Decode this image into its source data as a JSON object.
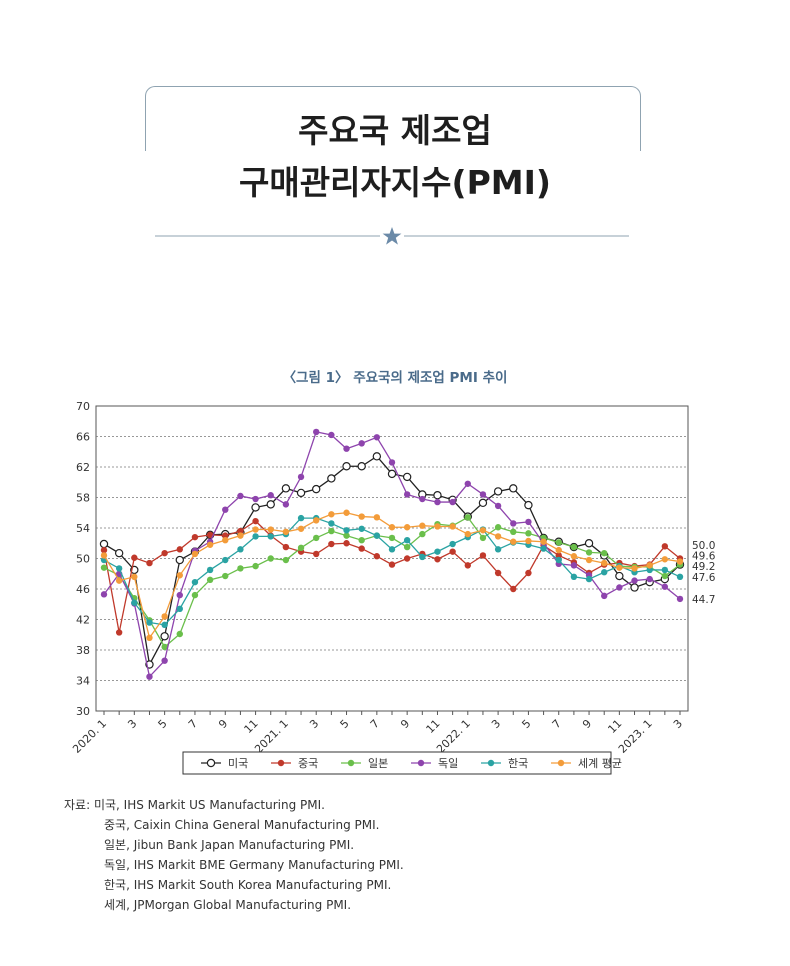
{
  "title": {
    "line1": "주요국 제조업",
    "line2": "구매관리자지수(PMI)"
  },
  "colors": {
    "title_box": "#8fa3b1",
    "rule": "#8fa3b1",
    "star": "#6b8aa8",
    "caption": "#4a6b8a"
  },
  "figure_caption": "〈그림 1〉 주요국의 제조업 PMI 추이",
  "chart_data": {
    "type": "line",
    "ylim": [
      30,
      70
    ],
    "yticks": [
      30,
      34,
      38,
      42,
      46,
      50,
      54,
      58,
      62,
      66,
      70
    ],
    "grid": true,
    "x": [
      "2020.1",
      "2020.2",
      "2020.3",
      "2020.4",
      "2020.5",
      "2020.6",
      "2020.7",
      "2020.8",
      "2020.9",
      "2020.10",
      "2020.11",
      "2020.12",
      "2021.1",
      "2021.2",
      "2021.3",
      "2021.4",
      "2021.5",
      "2021.6",
      "2021.7",
      "2021.8",
      "2021.9",
      "2021.10",
      "2021.11",
      "2021.12",
      "2022.1",
      "2022.2",
      "2022.3",
      "2022.4",
      "2022.5",
      "2022.6",
      "2022.7",
      "2022.8",
      "2022.9",
      "2022.10",
      "2022.11",
      "2022.12",
      "2023.1",
      "2023.2",
      "2023.3"
    ],
    "xtick_labels": [
      "2020. 1",
      "",
      "3",
      "",
      "5",
      "",
      "7",
      "",
      "9",
      "",
      "11",
      "",
      "2021. 1",
      "",
      "3",
      "",
      "5",
      "",
      "7",
      "",
      "9",
      "",
      "11",
      "",
      "2022. 1",
      "",
      "3",
      "",
      "5",
      "",
      "7",
      "",
      "9",
      "",
      "11",
      "",
      "2023. 1",
      "",
      "3"
    ],
    "series": [
      {
        "name": "미국",
        "color": "#222222",
        "hollow": true,
        "values": [
          51.9,
          50.7,
          48.5,
          36.1,
          39.8,
          49.8,
          50.9,
          53.1,
          53.2,
          53.4,
          56.7,
          57.1,
          59.2,
          58.6,
          59.1,
          60.5,
          62.1,
          62.1,
          63.4,
          61.1,
          60.7,
          58.4,
          58.3,
          57.7,
          55.5,
          57.3,
          58.8,
          59.2,
          57.0,
          52.7,
          52.2,
          51.5,
          52.0,
          50.4,
          47.7,
          46.2,
          46.9,
          47.3,
          49.2
        ]
      },
      {
        "name": "중국",
        "color": "#c0392b",
        "values": [
          51.1,
          40.3,
          50.1,
          49.4,
          50.7,
          51.2,
          52.8,
          53.1,
          53.0,
          53.6,
          54.9,
          53.0,
          51.5,
          50.9,
          50.6,
          51.9,
          52.0,
          51.3,
          50.3,
          49.2,
          50.0,
          50.6,
          49.9,
          50.9,
          49.1,
          50.4,
          48.1,
          46.0,
          48.1,
          51.7,
          50.4,
          49.5,
          48.1,
          49.2,
          49.4,
          49.0,
          49.2,
          51.6,
          50.0
        ]
      },
      {
        "name": "일본",
        "color": "#6abf4b",
        "values": [
          48.8,
          47.8,
          44.8,
          41.9,
          38.4,
          40.1,
          45.2,
          47.2,
          47.7,
          48.7,
          49.0,
          50.0,
          49.8,
          51.4,
          52.7,
          53.6,
          53.0,
          52.4,
          53.0,
          52.7,
          51.5,
          53.2,
          54.5,
          54.3,
          55.4,
          52.7,
          54.1,
          53.5,
          53.3,
          52.7,
          52.1,
          51.5,
          50.8,
          50.7,
          49.0,
          48.9,
          48.9,
          47.7,
          49.2
        ]
      },
      {
        "name": "독일",
        "color": "#8e44ad",
        "values": [
          45.3,
          48.0,
          44.1,
          34.5,
          36.6,
          45.2,
          51.0,
          52.2,
          56.4,
          58.2,
          57.8,
          58.3,
          57.1,
          60.7,
          66.6,
          66.2,
          64.4,
          65.1,
          65.9,
          62.6,
          58.4,
          57.8,
          57.4,
          57.4,
          59.8,
          58.4,
          56.9,
          54.6,
          54.8,
          52.0,
          49.3,
          49.1,
          47.8,
          45.1,
          46.2,
          47.1,
          47.3,
          46.3,
          44.7
        ]
      },
      {
        "name": "한국",
        "color": "#2aa3a3",
        "values": [
          49.8,
          48.7,
          44.2,
          41.6,
          41.3,
          43.4,
          46.9,
          48.5,
          49.8,
          51.2,
          52.9,
          52.9,
          53.2,
          55.3,
          55.3,
          54.6,
          53.7,
          53.9,
          53.0,
          51.2,
          52.4,
          50.2,
          50.9,
          51.9,
          52.8,
          53.8,
          51.2,
          52.1,
          51.8,
          51.3,
          49.8,
          47.6,
          47.3,
          48.2,
          49.0,
          48.2,
          48.5,
          48.5,
          47.6
        ]
      },
      {
        "name": "세계 평균",
        "color": "#f39c3a",
        "values": [
          50.4,
          47.1,
          47.6,
          39.6,
          42.4,
          47.8,
          50.6,
          51.8,
          52.4,
          53.0,
          53.8,
          53.8,
          53.5,
          53.9,
          55.0,
          55.8,
          56.0,
          55.5,
          55.4,
          54.1,
          54.1,
          54.3,
          54.2,
          54.2,
          53.2,
          53.7,
          52.9,
          52.2,
          52.3,
          52.2,
          51.1,
          50.3,
          49.8,
          49.4,
          48.8,
          48.7,
          49.1,
          49.9,
          49.6
        ]
      }
    ],
    "end_labels": [
      "50.0",
      "49.6",
      "49.2",
      "47.6",
      "44.7"
    ],
    "legend_position": "bottom"
  },
  "source": {
    "prefix": "자료: ",
    "lines": [
      "미국, IHS Markit US Manufacturing PMI.",
      "중국, Caixin China General Manufacturing PMI.",
      "일본, Jibun Bank Japan Manufacturing PMI.",
      "독일, IHS Markit BME Germany Manufacturing PMI.",
      "한국, IHS Markit South Korea Manufacturing PMI.",
      "세계, JPMorgan Global Manufacturing PMI."
    ]
  }
}
